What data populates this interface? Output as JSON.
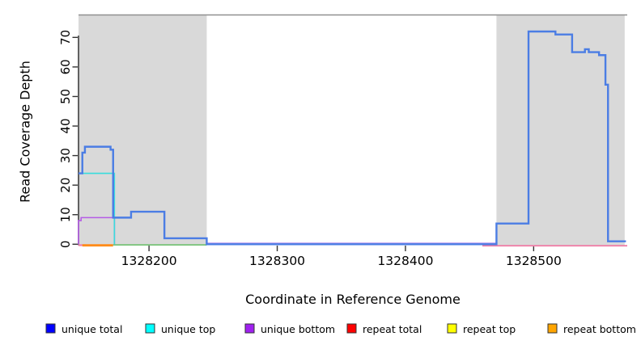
{
  "chart_data": {
    "type": "step-line",
    "title": "",
    "xlabel": "Coordinate in Reference Genome",
    "ylabel": "Read Coverage Depth",
    "xlim": [
      1328145,
      1328573
    ],
    "ylim": [
      0,
      72
    ],
    "xticks": [
      1328200,
      1328300,
      1328400,
      1328500
    ],
    "yticks": [
      0,
      10,
      20,
      30,
      40,
      50,
      60,
      70
    ],
    "grid": false,
    "legend_position": "bottom",
    "region_fill": "#d9d9d9",
    "region_top_border": "#909090",
    "axis_color": "#333333",
    "shaded_regions": [
      {
        "x0": 1328145,
        "x1": 1328245
      },
      {
        "x0": 1328471,
        "x1": 1328571
      }
    ],
    "series": [
      {
        "name": "unique total",
        "legend_color": "#0000ff",
        "line_color": "#4b7de4",
        "width": 2.4,
        "z": 3,
        "draw": true,
        "points": [
          [
            1328145,
            24
          ],
          [
            1328148,
            31
          ],
          [
            1328150,
            33
          ],
          [
            1328170,
            32
          ],
          [
            1328172,
            9
          ],
          [
            1328186,
            11
          ],
          [
            1328212,
            2
          ],
          [
            1328245,
            0
          ],
          [
            1328471,
            7
          ],
          [
            1328496,
            72
          ],
          [
            1328517,
            71
          ],
          [
            1328530,
            65
          ],
          [
            1328540,
            66
          ],
          [
            1328543,
            65
          ],
          [
            1328551,
            64
          ],
          [
            1328556,
            54
          ],
          [
            1328558,
            1
          ],
          [
            1328572,
            1
          ]
        ]
      },
      {
        "name": "unique top",
        "legend_color": "#00ffff",
        "line_color": "#38dcdc",
        "width": 1.6,
        "z": 2,
        "draw": true,
        "points": [
          [
            1328145,
            24
          ],
          [
            1328173,
            24
          ],
          [
            1328173,
            0
          ]
        ]
      },
      {
        "name": "unique bottom",
        "legend_color": "#a020f0",
        "line_color": "#b55ce6",
        "width": 1.6,
        "z": 1,
        "draw": true,
        "points": [
          [
            1328145,
            0
          ],
          [
            1328145,
            8
          ],
          [
            1328147,
            9
          ],
          [
            1328173,
            9
          ],
          [
            1328173,
            0
          ]
        ]
      },
      {
        "name": "repeat total",
        "legend_color": "#ff0000",
        "line_color": "#ef7fa8",
        "width": 1.8,
        "z": 0,
        "draw": false,
        "points": [
          [
            1328145,
            0
          ],
          [
            1328573,
            0
          ]
        ]
      },
      {
        "name": "repeat top",
        "legend_color": "#ffff00",
        "line_color": "#ffff00",
        "width": 1.6,
        "z": 0,
        "draw": false,
        "points": [
          [
            1328145,
            0
          ],
          [
            1328573,
            0
          ]
        ]
      },
      {
        "name": "repeat bottom",
        "legend_color": "#ffa500",
        "line_color": "#ff8c1a",
        "width": 2.6,
        "z": 0,
        "draw": false,
        "points": [
          [
            1328148,
            0
          ],
          [
            1328172,
            0
          ]
        ]
      }
    ],
    "baseline_segments": [
      {
        "name": "repeat-total-left",
        "x0": 1328145,
        "x1": 1328151,
        "color": "#ef7fa8",
        "width": 2.2,
        "dy": 1.2
      },
      {
        "name": "repeat-bottom",
        "x0": 1328148,
        "x1": 1328172,
        "color": "#ff8c1a",
        "width": 2.8,
        "dy": 1.4
      },
      {
        "name": "strand-zero-blend",
        "x0": 1328172,
        "x1": 1328245,
        "color": "#77c377",
        "width": 1.8,
        "dy": 0.8
      },
      {
        "name": "unique-bottom-zero",
        "x0": 1328245,
        "x1": 1328471,
        "color": "#c2a5f0",
        "width": 1.4,
        "dy": -1.5
      },
      {
        "name": "repeat-total-right",
        "x0": 1328460,
        "x1": 1328573,
        "color": "#ef7fa8",
        "width": 1.8,
        "dy": 1.9
      }
    ]
  }
}
